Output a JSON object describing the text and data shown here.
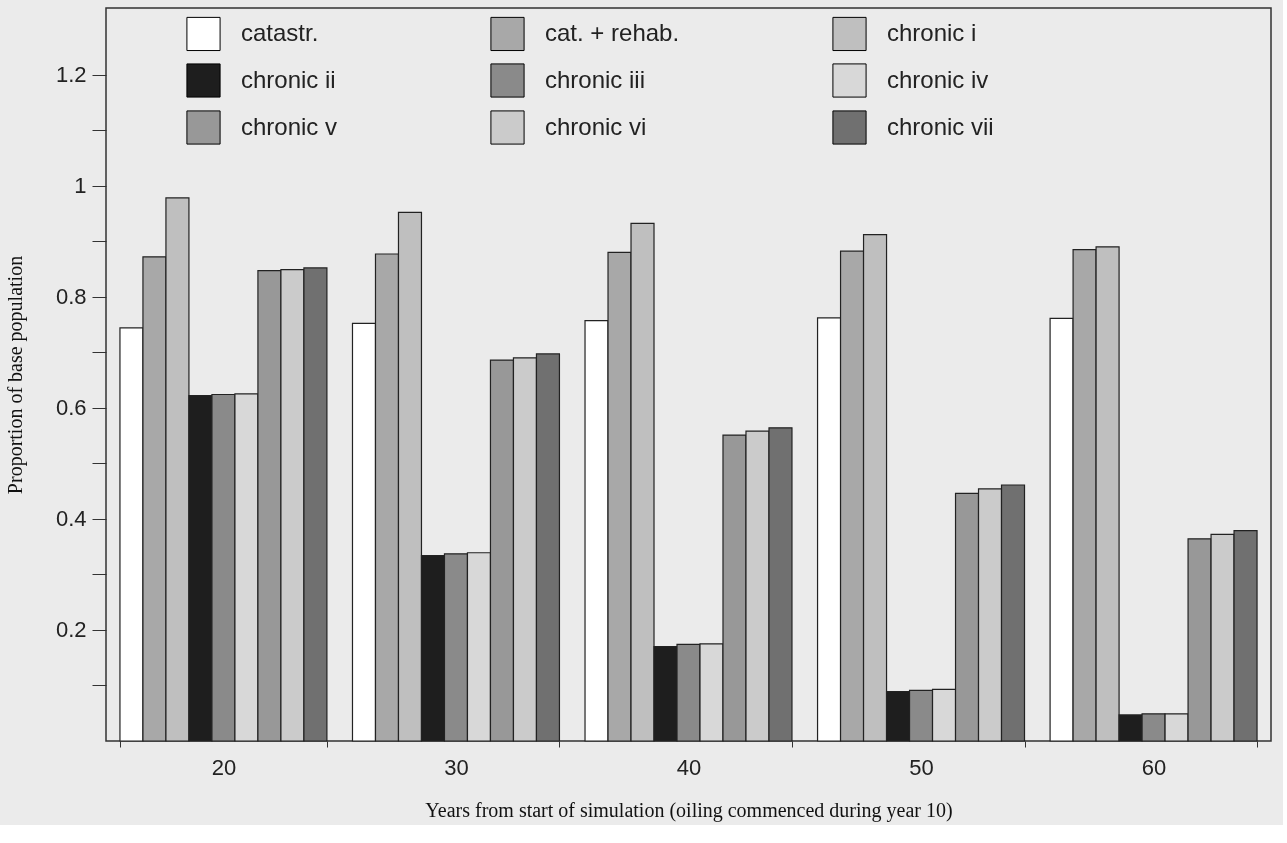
{
  "chart_data": {
    "type": "bar",
    "xlabel": "Years from start of simulation (oiling commenced during year 10)",
    "ylabel": "Proportion of base population",
    "categories": [
      "20",
      "30",
      "40",
      "50",
      "60"
    ],
    "series": [
      {
        "name": "catastr.",
        "color": "#ffffff",
        "values": [
          0.744,
          0.752,
          0.757,
          0.762,
          0.761
        ]
      },
      {
        "name": "cat. + rehab.",
        "color": "#a8a8a8",
        "values": [
          0.872,
          0.877,
          0.88,
          0.882,
          0.885
        ]
      },
      {
        "name": "chronic i",
        "color": "#bfbfbf",
        "values": [
          0.978,
          0.952,
          0.932,
          0.912,
          0.89
        ]
      },
      {
        "name": "chronic ii",
        "color": "#1e1e1e",
        "values": [
          0.622,
          0.334,
          0.17,
          0.089,
          0.047
        ]
      },
      {
        "name": "chronic iii",
        "color": "#8a8a8a",
        "values": [
          0.624,
          0.337,
          0.174,
          0.091,
          0.049
        ]
      },
      {
        "name": "chronic iv",
        "color": "#d8d8d8",
        "values": [
          0.625,
          0.339,
          0.175,
          0.093,
          0.049
        ]
      },
      {
        "name": "chronic v",
        "color": "#989898",
        "values": [
          0.847,
          0.686,
          0.551,
          0.446,
          0.364
        ]
      },
      {
        "name": "chronic vi",
        "color": "#cbcbcb",
        "values": [
          0.849,
          0.69,
          0.558,
          0.454,
          0.372
        ]
      },
      {
        "name": "chronic vii",
        "color": "#707070",
        "values": [
          0.852,
          0.697,
          0.564,
          0.461,
          0.379
        ]
      }
    ],
    "ylim": [
      0,
      1.32
    ],
    "yticks": [
      {
        "value": 0.1,
        "label": null
      },
      0.2,
      {
        "value": 0.3,
        "label": null
      },
      0.4,
      {
        "value": 0.5,
        "label": null
      },
      0.6,
      {
        "value": 0.7,
        "label": null
      },
      0.8,
      {
        "value": 0.9,
        "label": null
      },
      1,
      {
        "value": 1.1,
        "label": null
      },
      1.2
    ],
    "legend": "top",
    "grid": false
  }
}
